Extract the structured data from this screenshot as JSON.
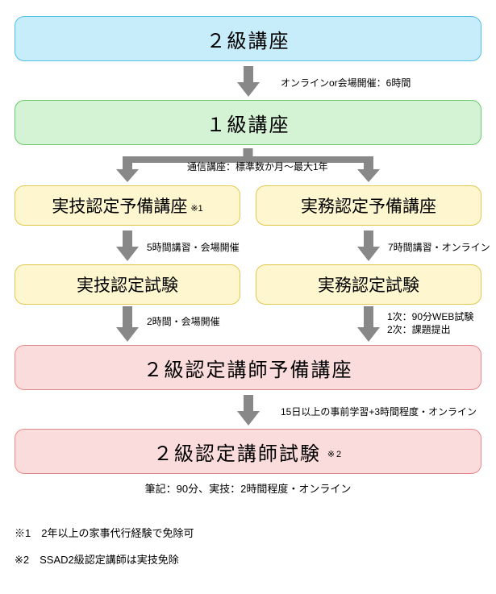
{
  "boxes": {
    "level2": {
      "text": "２級講座",
      "bg": "#c8edfa",
      "border": "#4fc0e8"
    },
    "level1": {
      "text": "１級講座",
      "bg": "#d4f2d4",
      "border": "#6cc96c"
    },
    "prepSkillPre": {
      "text": "実技認定予備講座",
      "note": "※1",
      "bg": "#fdf6cf",
      "border": "#e2c94f"
    },
    "prepWorkPre": {
      "text": "実務認定予備講座",
      "bg": "#fdf6cf",
      "border": "#e2c94f"
    },
    "skillExam": {
      "text": "実技認定試験",
      "bg": "#fdf6cf",
      "border": "#e2c94f"
    },
    "workExam": {
      "text": "実務認定試験",
      "bg": "#fdf6cf",
      "border": "#e2c94f"
    },
    "instructorPre": {
      "text": "２級認定講師予備講座",
      "bg": "#fbdcdc",
      "border": "#e88a8a"
    },
    "instructorExam": {
      "text": "２級認定講師試験",
      "note": "※2",
      "bg": "#fbdcdc",
      "border": "#e88a8a"
    }
  },
  "arrows": {
    "a1": "オンラインor会場開催：6時間",
    "a2": "通信講座：標準数か月～最大1年",
    "a3l": "5時間講習・会場開催",
    "a3r": "7時間講習・オンライン",
    "a4l": "2時間・会場開催",
    "a4r1": "1次：90分WEB試験",
    "a4r2": "2次：課題提出",
    "a5": "15日以上の事前学習+3時間程度・オンライン",
    "a6": "筆記：90分、実技：2時間程度・オンライン"
  },
  "arrowColor": "#888888",
  "footnotes": {
    "f1": "※1　2年以上の家事代行経験で免除可",
    "f2": "※2　SSAD2級認定講師は実技免除"
  }
}
